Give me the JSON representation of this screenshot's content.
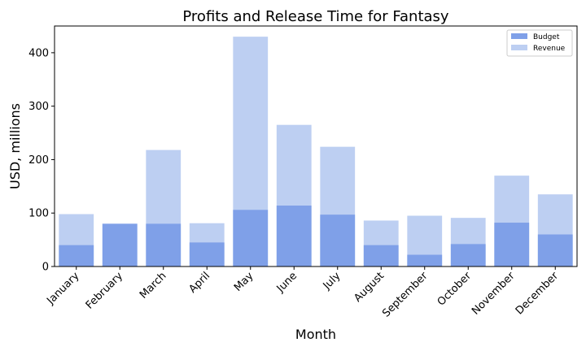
{
  "chart_data": {
    "type": "bar",
    "title": "Profits and Release Time for Fantasy",
    "xlabel": "Month",
    "ylabel": "USD, millions",
    "categories": [
      "January",
      "February",
      "March",
      "April",
      "May",
      "June",
      "July",
      "August",
      "September",
      "October",
      "November",
      "December"
    ],
    "series": [
      {
        "name": "Budget",
        "color": "#7fa0e8",
        "values": [
          40,
          80,
          80,
          45,
          106,
          114,
          97,
          40,
          22,
          42,
          82,
          60
        ]
      },
      {
        "name": "Revenue",
        "color": "#bdcff2",
        "values": [
          98,
          80,
          218,
          81,
          430,
          265,
          224,
          86,
          95,
          91,
          170,
          135
        ]
      }
    ],
    "ylim": [
      0,
      450
    ],
    "yticks": [
      0,
      100,
      200,
      300,
      400
    ],
    "grid": false,
    "legend_position": "top-right"
  }
}
